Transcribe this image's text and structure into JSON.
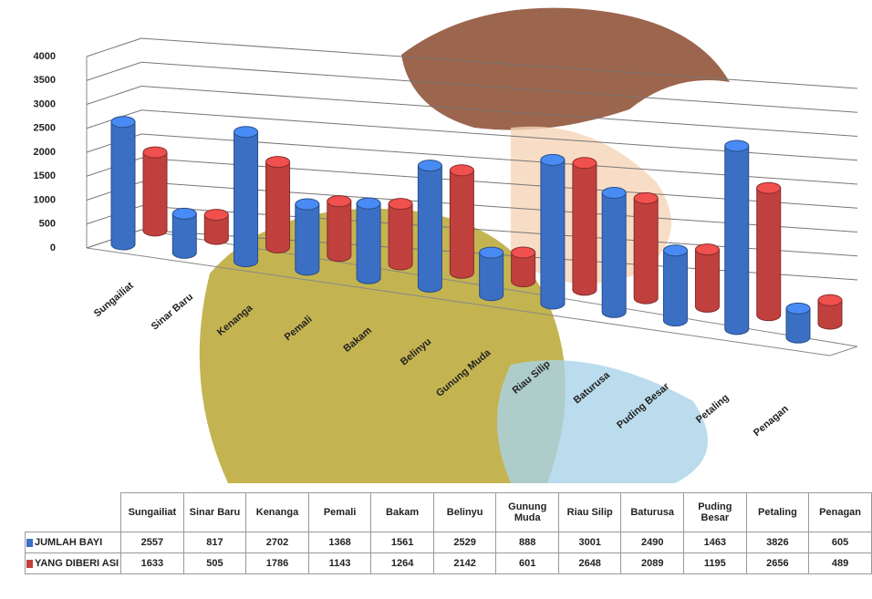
{
  "chart_data": {
    "type": "bar",
    "categories": [
      "Sungailiat",
      "Sinar Baru",
      "Kenanga",
      "Pemali",
      "Bakam",
      "Belinyu",
      "Gunung Muda",
      "Riau Silip",
      "Baturusa",
      "Puding Besar",
      "Petaling",
      "Penagan"
    ],
    "series": [
      {
        "name": "JUMLAH BAYI",
        "color": "#3a6fc4",
        "values": [
          2557,
          817,
          2702,
          1368,
          1561,
          2529,
          888,
          3001,
          2490,
          1463,
          3826,
          605
        ]
      },
      {
        "name": "YANG DIBERI ASI",
        "color": "#c0403e",
        "values": [
          1633,
          505,
          1786,
          1143,
          1264,
          2142,
          601,
          2648,
          2089,
          1195,
          2656,
          489
        ]
      }
    ],
    "ylim": [
      0,
      4000
    ],
    "yticks": [
      0,
      500,
      1000,
      1500,
      2000,
      2500,
      3000,
      3500,
      4000
    ],
    "grid": true
  }
}
